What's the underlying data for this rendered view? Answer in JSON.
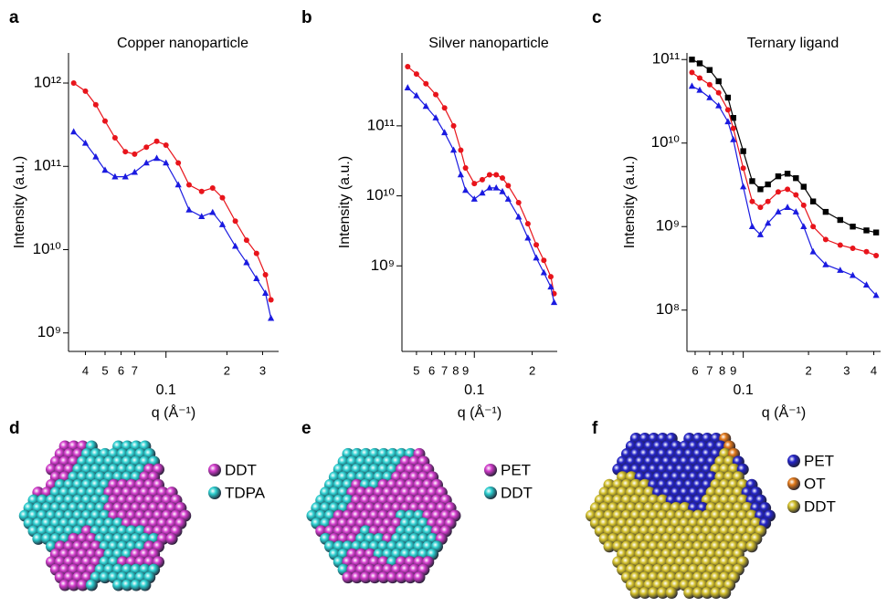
{
  "chart_data": [
    {
      "type": "line",
      "panel_label": "a",
      "title": "Copper nanoparticle",
      "x_label": "q (Å⁻¹)",
      "y_label": "Intensity (a.u.)",
      "xscale": "log",
      "yscale": "log",
      "xlim": [
        0.033,
        0.36
      ],
      "ylim": [
        600000000.0,
        2300000000000.0
      ],
      "xticks": [
        {
          "value": 0.04,
          "label": "4"
        },
        {
          "value": 0.05,
          "label": "5"
        },
        {
          "value": 0.06,
          "label": "6"
        },
        {
          "value": 0.07,
          "label": "7"
        },
        0.1,
        {
          "value": 0.2,
          "label": "2"
        },
        {
          "value": 0.3,
          "label": "3"
        }
      ],
      "yticks": [
        {
          "value": 1000000000.0,
          "label": "10⁹"
        },
        {
          "value": 10000000000.0,
          "label": "10¹⁰"
        },
        {
          "value": 100000000000.0,
          "label": "10¹¹"
        },
        {
          "value": 1000000000000.0,
          "label": "10¹²"
        }
      ],
      "x": [
        0.035,
        0.04,
        0.045,
        0.05,
        0.056,
        0.063,
        0.07,
        0.08,
        0.09,
        0.1,
        0.115,
        0.13,
        0.15,
        0.17,
        0.19,
        0.22,
        0.25,
        0.28,
        0.31,
        0.33
      ],
      "series": [
        {
          "color": "#e8141b",
          "marker": "circle",
          "values": [
            1000000000000.0,
            800000000000.0,
            550000000000.0,
            350000000000.0,
            220000000000.0,
            150000000000.0,
            140000000000.0,
            170000000000.0,
            200000000000.0,
            180000000000.0,
            110000000000.0,
            60000000000.0,
            50000000000.0,
            55000000000.0,
            42000000000.0,
            22000000000.0,
            13000000000.0,
            9000000000.0,
            5000000000.0,
            2500000000.0
          ]
        },
        {
          "color": "#1a1ae0",
          "marker": "triangle",
          "values": [
            260000000000.0,
            190000000000.0,
            130000000000.0,
            90000000000.0,
            75000000000.0,
            75000000000.0,
            85000000000.0,
            110000000000.0,
            125000000000.0,
            110000000000.0,
            60000000000.0,
            30000000000.0,
            25000000000.0,
            28000000000.0,
            20000000000.0,
            11000000000.0,
            7000000000.0,
            4500000000.0,
            3000000000.0,
            1500000000.0
          ]
        }
      ]
    },
    {
      "type": "line",
      "panel_label": "b",
      "title": "Silver nanoparticle",
      "x_label": "q (Å⁻¹)",
      "y_label": "Intensity (a.u.)",
      "xscale": "log",
      "yscale": "log",
      "xlim": [
        0.042,
        0.27
      ],
      "ylim": [
        60000000.0,
        1100000000000.0
      ],
      "xticks": [
        {
          "value": 0.05,
          "label": "5"
        },
        {
          "value": 0.06,
          "label": "6"
        },
        {
          "value": 0.07,
          "label": "7"
        },
        {
          "value": 0.08,
          "label": "8"
        },
        {
          "value": 0.09,
          "label": "9"
        },
        0.1,
        {
          "value": 0.2,
          "label": "2"
        }
      ],
      "yticks": [
        {
          "value": 1000000000.0,
          "label": "10⁹"
        },
        {
          "value": 10000000000.0,
          "label": "10¹⁰"
        },
        {
          "value": 100000000000.0,
          "label": "10¹¹"
        }
      ],
      "x": [
        0.045,
        0.05,
        0.056,
        0.063,
        0.07,
        0.078,
        0.085,
        0.09,
        0.1,
        0.11,
        0.12,
        0.13,
        0.14,
        0.15,
        0.17,
        0.19,
        0.21,
        0.23,
        0.25,
        0.26
      ],
      "series": [
        {
          "color": "#e8141b",
          "marker": "circle",
          "values": [
            700000000000.0,
            550000000000.0,
            400000000000.0,
            280000000000.0,
            180000000000.0,
            100000000000.0,
            45000000000.0,
            25000000000.0,
            15000000000.0,
            17000000000.0,
            20000000000.0,
            20000000000.0,
            18000000000.0,
            14000000000.0,
            8000000000.0,
            4000000000.0,
            2000000000.0,
            1200000000.0,
            700000000.0,
            400000000.0
          ]
        },
        {
          "color": "#1a1ae0",
          "marker": "triangle",
          "values": [
            350000000000.0,
            270000000000.0,
            190000000000.0,
            130000000000.0,
            80000000000.0,
            45000000000.0,
            20000000000.0,
            12000000000.0,
            9000000000.0,
            11000000000.0,
            13000000000.0,
            13000000000.0,
            11500000000.0,
            9000000000.0,
            5000000000.0,
            2500000000.0,
            1300000000.0,
            800000000.0,
            500000000.0,
            300000000.0
          ]
        }
      ]
    },
    {
      "type": "line",
      "panel_label": "c",
      "title": "Ternary ligand",
      "x_label": "q (Å⁻¹)",
      "y_label": "Intensity (a.u.)",
      "xscale": "log",
      "yscale": "log",
      "xlim": [
        0.055,
        0.43
      ],
      "ylim": [
        32000000.0,
        120000000000.0
      ],
      "xticks": [
        {
          "value": 0.06,
          "label": "6"
        },
        {
          "value": 0.07,
          "label": "7"
        },
        {
          "value": 0.08,
          "label": "8"
        },
        {
          "value": 0.09,
          "label": "9"
        },
        0.1,
        {
          "value": 0.2,
          "label": "2"
        },
        {
          "value": 0.3,
          "label": "3"
        },
        {
          "value": 0.4,
          "label": "4"
        }
      ],
      "yticks": [
        {
          "value": 100000000.0,
          "label": "10⁸"
        },
        {
          "value": 1000000000.0,
          "label": "10⁹"
        },
        {
          "value": 10000000000.0,
          "label": "10¹⁰"
        },
        {
          "value": 100000000000.0,
          "label": "10¹¹"
        }
      ],
      "x": [
        0.058,
        0.063,
        0.07,
        0.077,
        0.085,
        0.09,
        0.1,
        0.11,
        0.12,
        0.13,
        0.145,
        0.16,
        0.175,
        0.19,
        0.21,
        0.24,
        0.28,
        0.32,
        0.37,
        0.41
      ],
      "series": [
        {
          "color": "#000000",
          "marker": "square",
          "values": [
            100000000000.0,
            90000000000.0,
            75000000000.0,
            55000000000.0,
            35000000000.0,
            20000000000.0,
            8000000000.0,
            3500000000.0,
            2800000000.0,
            3200000000.0,
            4000000000.0,
            4300000000.0,
            3800000000.0,
            3000000000.0,
            2000000000.0,
            1500000000.0,
            1200000000.0,
            1000000000.0,
            900000000.0,
            850000000.0
          ]
        },
        {
          "color": "#e8141b",
          "marker": "circle",
          "values": [
            70000000000.0,
            60000000000.0,
            50000000000.0,
            40000000000.0,
            25000000000.0,
            15000000000.0,
            5000000000.0,
            2000000000.0,
            1700000000.0,
            2000000000.0,
            2600000000.0,
            2800000000.0,
            2400000000.0,
            1800000000.0,
            1000000000.0,
            700000000.0,
            600000000.0,
            550000000.0,
            500000000.0,
            450000000.0
          ]
        },
        {
          "color": "#1a1ae0",
          "marker": "triangle",
          "values": [
            48000000000.0,
            43000000000.0,
            35000000000.0,
            28000000000.0,
            18000000000.0,
            11000000000.0,
            3000000000.0,
            1000000000.0,
            800000000.0,
            1100000000.0,
            1500000000.0,
            1700000000.0,
            1500000000.0,
            1000000000.0,
            500000000.0,
            350000000.0,
            300000000.0,
            260000000.0,
            200000000.0,
            150000000.0
          ]
        }
      ]
    }
  ],
  "images": [
    {
      "panel_label": "d",
      "legend": [
        {
          "name": "DDT",
          "color": "#d23ccb"
        },
        {
          "name": "TDPA",
          "color": "#2ccfd0"
        }
      ]
    },
    {
      "panel_label": "e",
      "legend": [
        {
          "name": "PET",
          "color": "#d23ccb"
        },
        {
          "name": "DDT",
          "color": "#2ccfd0"
        }
      ]
    },
    {
      "panel_label": "f",
      "legend": [
        {
          "name": "PET",
          "color": "#2424c8"
        },
        {
          "name": "OT",
          "color": "#e0781a"
        },
        {
          "name": "DDT",
          "color": "#d2bf2a"
        }
      ]
    }
  ]
}
